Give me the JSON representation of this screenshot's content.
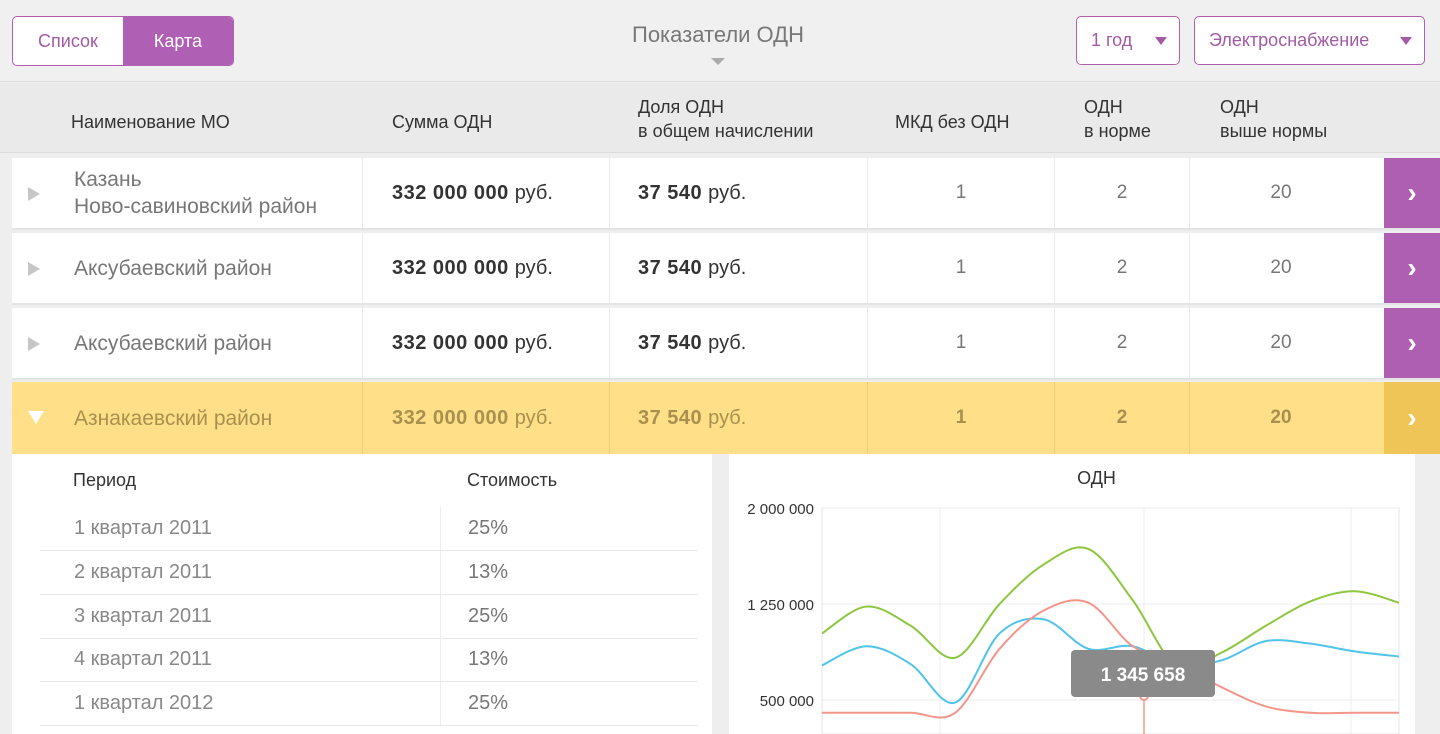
{
  "toolbar": {
    "view_tabs": [
      "Список",
      "Карта"
    ],
    "active_tab": "Карта",
    "title": "Показатели ОДН",
    "period": "1 год",
    "resource": "Электроснабжение"
  },
  "table": {
    "headers": {
      "name": "Наименование МО",
      "sum": "Сумма ОДН",
      "share_l1": "Доля ОДН",
      "share_l2": "в общем начислении",
      "mkd": "МКД без ОДН",
      "norm_l1": "ОДН",
      "norm_l2": "в норме",
      "above_l1": "ОДН",
      "above_l2": "выше нормы"
    },
    "currency": "руб.",
    "rows": [
      {
        "name_l1": "Казань",
        "name_l2": "Ново-савиновский район",
        "sum": "332 000 000",
        "share": "37 540",
        "mkd": "1",
        "norm": "2",
        "above": "20"
      },
      {
        "name_l1": "Аксубаевский район",
        "sum": "332 000 000",
        "share": "37 540",
        "mkd": "1",
        "norm": "2",
        "above": "20"
      },
      {
        "name_l1": "Аксубаевский район",
        "sum": "332 000 000",
        "share": "37 540",
        "mkd": "1",
        "norm": "2",
        "above": "20"
      },
      {
        "name_l1": "Азнакаевский район",
        "sum": "332 000 000",
        "share": "37 540",
        "mkd": "1",
        "norm": "2",
        "above": "20"
      }
    ]
  },
  "detail": {
    "head_period": "Период",
    "head_cost": "Стоимость",
    "rows": [
      {
        "period": "1 квартал 2011",
        "value": "25%"
      },
      {
        "period": "2 квартал 2011",
        "value": "13%"
      },
      {
        "period": "3 квартал 2011",
        "value": "25%"
      },
      {
        "period": "4 квартал 2011",
        "value": "13%"
      },
      {
        "period": "1 квартал 2012",
        "value": "25%"
      }
    ]
  },
  "chart_data": {
    "type": "line",
    "title": "ОДН",
    "y_ticks": [
      "2 000 000",
      "1 250 000",
      "500 000"
    ],
    "ylim": [
      500000,
      2000000
    ],
    "tooltip": "1 345 658",
    "grid": true,
    "colors": {
      "green": "#8dc63f",
      "blue": "#4fc3e8",
      "red": "#f4958a"
    },
    "series": [
      {
        "color": "green",
        "values": [
          1020000,
          1230000,
          1080000,
          830000,
          1250000,
          1560000,
          1680000,
          1280000,
          760000,
          870000,
          1080000,
          1270000,
          1350000,
          1260000
        ]
      },
      {
        "color": "blue",
        "values": [
          770000,
          920000,
          780000,
          480000,
          1020000,
          1130000,
          900000,
          920000,
          770000,
          810000,
          960000,
          940000,
          880000,
          840000
        ]
      },
      {
        "color": "red",
        "values": [
          400000,
          400000,
          400000,
          400000,
          900000,
          1200000,
          1260000,
          920000,
          780000,
          600000,
          450000,
          400000,
          400000,
          400000
        ]
      }
    ]
  }
}
